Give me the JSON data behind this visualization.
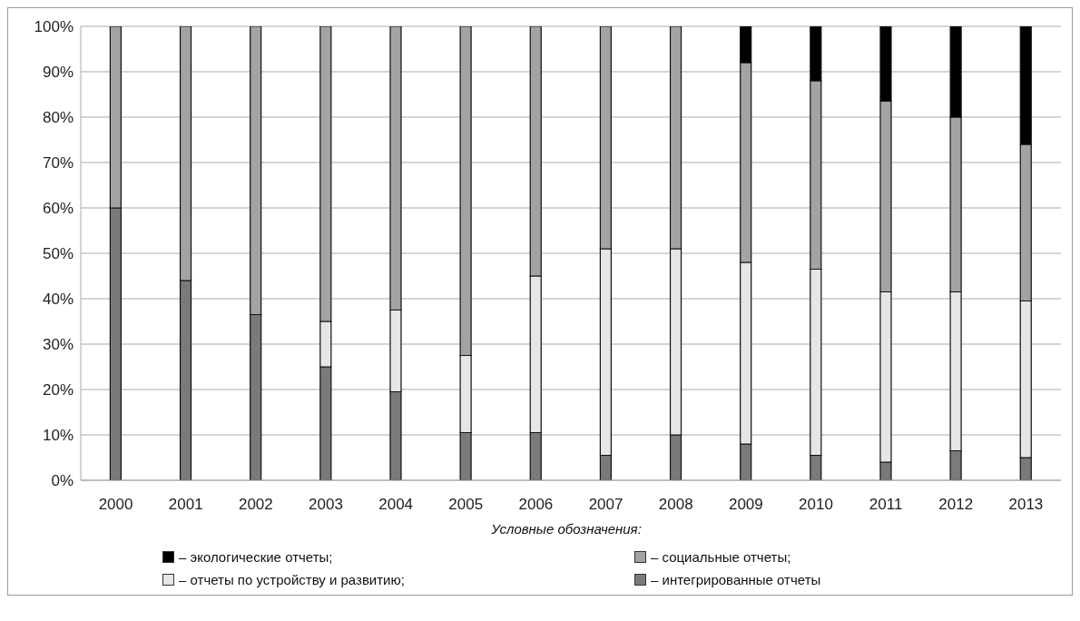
{
  "chart_data": {
    "type": "bar",
    "stacked": true,
    "categories": [
      "2000",
      "2001",
      "2002",
      "2003",
      "2004",
      "2005",
      "2006",
      "2007",
      "2008",
      "2009",
      "2010",
      "2011",
      "2012",
      "2013"
    ],
    "series": [
      {
        "name": "– интегрированные отчеты",
        "color": "#7a7a7a",
        "values": [
          60,
          44,
          36.5,
          25,
          19.5,
          10.5,
          10.5,
          5.5,
          10,
          8,
          5.5,
          4,
          6.5,
          5
        ]
      },
      {
        "name": "– отчеты по устройству и развитию;",
        "color": "#e6e6e6",
        "values": [
          null,
          null,
          null,
          10,
          18,
          17,
          34.5,
          45.5,
          41,
          40,
          41,
          37.5,
          35,
          34.5
        ]
      },
      {
        "name": "– социальные отчеты;",
        "color": "#a3a3a3",
        "values": [
          40,
          56,
          63.5,
          65,
          62.5,
          72.5,
          55,
          49,
          49,
          44,
          41.5,
          42,
          38.5,
          34.5
        ]
      },
      {
        "name": "– экологические отчеты;",
        "color": "#000000",
        "values": [
          null,
          null,
          null,
          null,
          null,
          null,
          null,
          null,
          null,
          8,
          12,
          16.5,
          20,
          26
        ]
      }
    ],
    "ylim": [
      0,
      100
    ],
    "yticks": [
      {
        "value": 0,
        "label": "0%"
      },
      {
        "value": 10,
        "label": "10%"
      },
      {
        "value": 20,
        "label": "20%"
      },
      {
        "value": 30,
        "label": "30%"
      },
      {
        "value": 40,
        "label": "40%"
      },
      {
        "value": 50,
        "label": "50%"
      },
      {
        "value": 60,
        "label": "60%"
      },
      {
        "value": 70,
        "label": "70%"
      },
      {
        "value": 80,
        "label": "80%"
      },
      {
        "value": 90,
        "label": "90%"
      },
      {
        "value": 100,
        "label": "100%"
      }
    ],
    "grid": "y",
    "legend": "bottom",
    "legend_title": "Условные обозначения:"
  }
}
